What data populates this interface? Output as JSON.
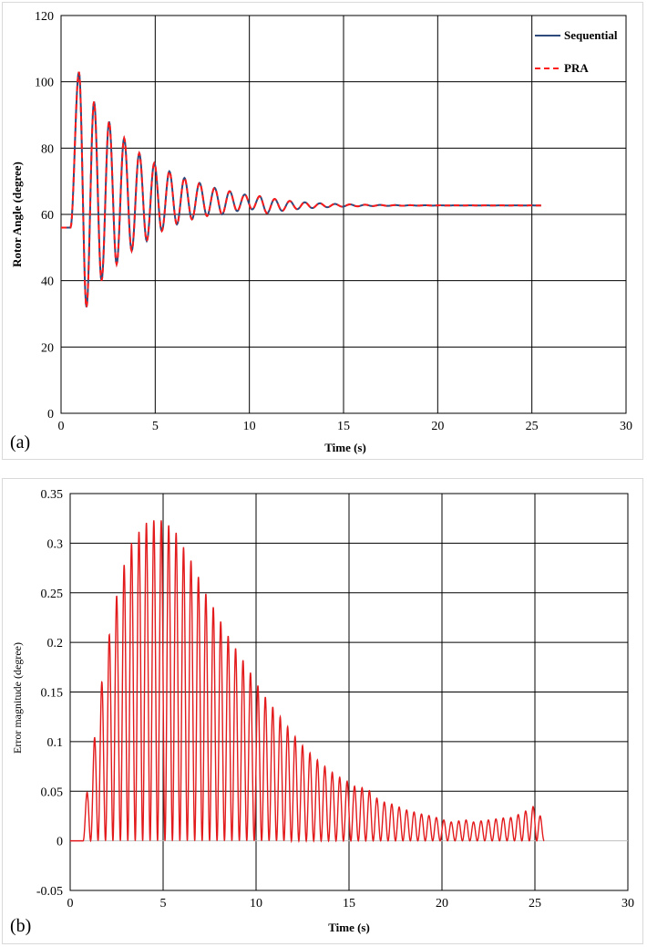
{
  "chart_data": [
    {
      "type": "line",
      "panel_label": "(a)",
      "title": "",
      "xlabel": "Time (s)",
      "ylabel": "Rotor Angle (degree)",
      "xlim": [
        0,
        30
      ],
      "ylim": [
        0,
        120
      ],
      "x_ticks": [
        "0",
        "5",
        "10",
        "15",
        "20",
        "25",
        "30"
      ],
      "y_ticks": [
        "0",
        "20",
        "40",
        "60",
        "80",
        "100",
        "120"
      ],
      "grid": true,
      "legend_position": "top-right",
      "oscillation": {
        "initial_value": 56,
        "final_value": 62.7,
        "fault_time": 0.5,
        "end_time": 25.5,
        "peak_times": [
          0.95,
          1.75,
          2.55,
          3.35,
          4.15,
          4.95,
          5.75,
          6.55,
          7.35,
          8.15,
          8.95,
          9.75,
          10.55
        ],
        "peak_values": [
          103,
          94,
          88,
          83,
          78.5,
          75.5,
          73,
          71,
          69.5,
          68,
          67,
          66,
          65.5
        ],
        "trough_times": [
          1.35,
          2.15,
          2.95,
          3.75,
          4.55,
          5.35,
          6.15,
          6.95,
          7.75,
          8.55,
          9.35,
          10.15
        ],
        "trough_values": [
          32,
          40,
          45,
          49,
          52,
          55,
          57,
          58.5,
          59.5,
          60,
          61,
          61.5
        ]
      },
      "series": [
        {
          "name": "Sequential",
          "color": "#2e4a7d",
          "style": "solid"
        },
        {
          "name": "PRA",
          "color": "#ff1a1a",
          "style": "dashed"
        }
      ]
    },
    {
      "type": "line",
      "panel_label": "(b)",
      "title": "",
      "xlabel": "Time (s)",
      "ylabel": "Error magnitude (degree)",
      "xlim": [
        0,
        30
      ],
      "ylim": [
        -0.05,
        0.35
      ],
      "x_ticks": [
        "0",
        "5",
        "10",
        "15",
        "20",
        "25",
        "30"
      ],
      "y_ticks": [
        "-0.05",
        "0",
        "0.05",
        "0.1",
        "0.15",
        "0.2",
        "0.25",
        "0.3",
        "0.35"
      ],
      "grid": true,
      "series": [
        {
          "name": "",
          "color": "#e31a1c",
          "start_time": 0.7,
          "end_time": 25.5,
          "lobe_period": 0.4,
          "envelope_times": [
            0.7,
            1.1,
            1.5,
            1.9,
            2.3,
            2.7,
            3.1,
            3.5,
            3.9,
            4.3,
            4.7,
            5.1,
            5.5,
            5.9,
            6.3,
            6.7,
            7.1,
            7.5,
            7.9,
            8.3,
            8.7,
            9.1,
            9.5,
            9.9,
            10.3,
            10.7,
            11.1,
            11.5,
            11.9,
            12.3,
            12.7,
            13.1,
            13.5,
            13.9,
            14.3,
            14.7,
            15.1,
            15.5,
            15.9,
            16.3,
            16.7,
            17.1,
            17.5,
            17.9,
            18.3,
            18.7,
            19.1,
            19.5,
            19.9,
            20.3,
            20.7,
            21.1,
            21.5,
            21.9,
            22.3,
            22.7,
            23.1,
            23.5,
            23.9,
            24.3,
            24.7,
            25.1,
            25.5
          ],
          "envelope_values": [
            0.035,
            0.062,
            0.143,
            0.177,
            0.238,
            0.256,
            0.3,
            0.3,
            0.323,
            0.318,
            0.328,
            0.318,
            0.318,
            0.303,
            0.289,
            0.276,
            0.256,
            0.242,
            0.229,
            0.213,
            0.2,
            0.188,
            0.176,
            0.163,
            0.15,
            0.14,
            0.13,
            0.12,
            0.11,
            0.1,
            0.092,
            0.085,
            0.078,
            0.072,
            0.066,
            0.062,
            0.058,
            0.052,
            0.055,
            0.046,
            0.04,
            0.038,
            0.036,
            0.032,
            0.03,
            0.028,
            0.026,
            0.025,
            0.022,
            0.02,
            0.018,
            0.022,
            0.02,
            0.018,
            0.022,
            0.02,
            0.024,
            0.022,
            0.025,
            0.028,
            0.032,
            0.037,
            0.012
          ]
        }
      ]
    }
  ],
  "legend": {
    "sequential": "Sequential",
    "pra": "PRA"
  }
}
